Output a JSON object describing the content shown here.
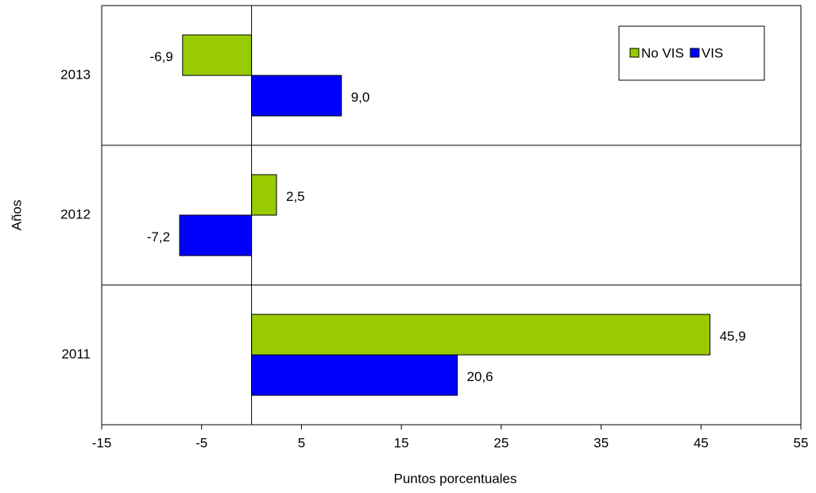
{
  "chart_data": {
    "type": "hbar",
    "y_label": "Años",
    "x_label": "Puntos porcentuales",
    "categories": [
      "2011",
      "2012",
      "2013"
    ],
    "series": [
      {
        "name": "No VIS",
        "color": "#99cc00",
        "values": [
          45.9,
          2.5,
          -6.9
        ],
        "value_labels": [
          "45,9",
          "2,5",
          "-6,9"
        ]
      },
      {
        "name": "VIS",
        "color": "#0000ff",
        "values": [
          20.6,
          -7.2,
          9.0
        ],
        "value_labels": [
          "20,6",
          "-7,2",
          "9,0"
        ]
      }
    ],
    "xlim": [
      -15,
      55
    ],
    "xticks": [
      -15,
      -5,
      5,
      15,
      25,
      35,
      45,
      55
    ],
    "legend": "top-right"
  }
}
